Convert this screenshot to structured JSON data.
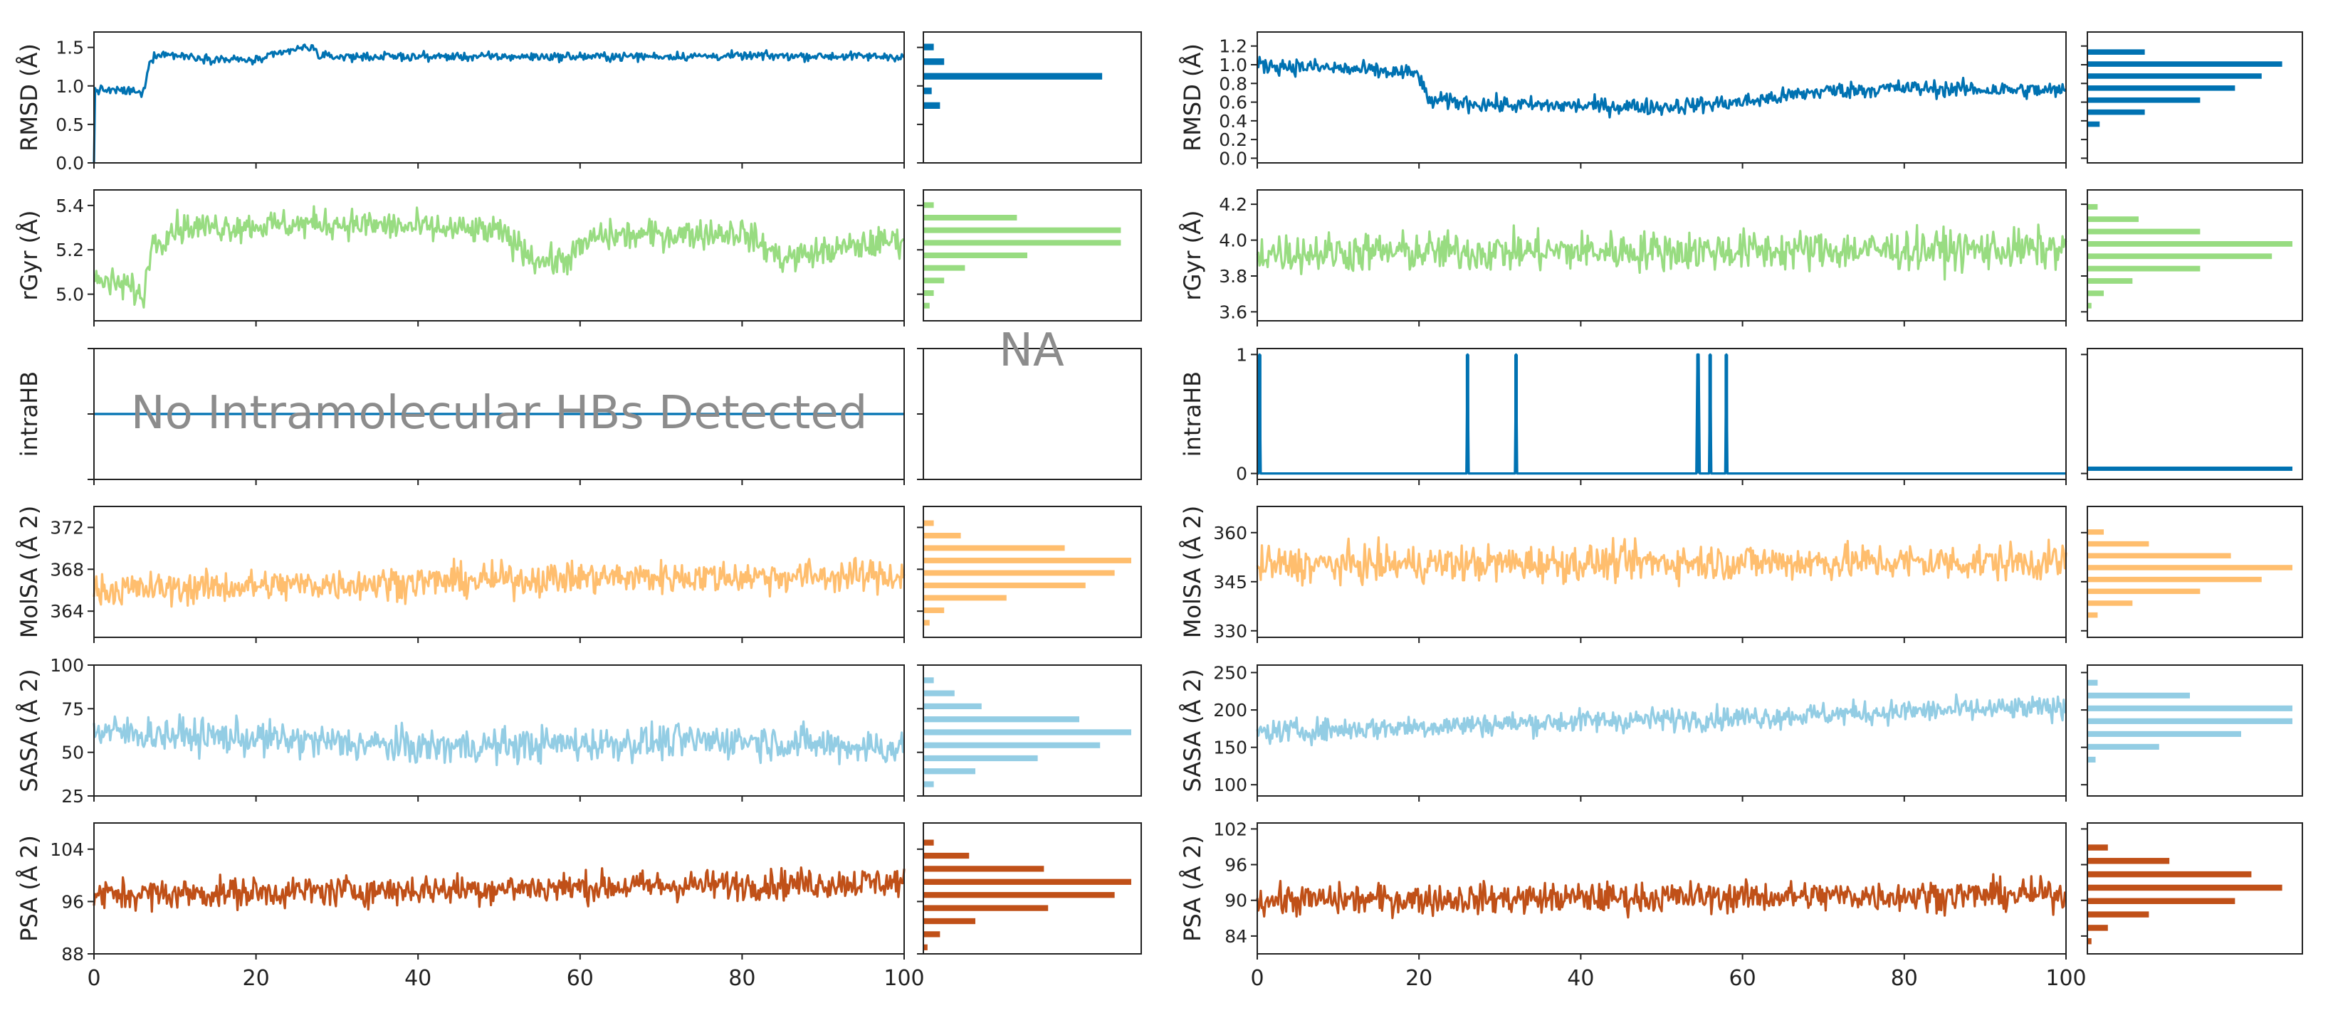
{
  "figure": {
    "title": "",
    "xlabel": "",
    "x_tick_labels": [
      "0",
      "20",
      "40",
      "60",
      "80",
      "100"
    ],
    "y_unit_superscript": "2"
  },
  "chart_data": [
    {
      "type": "line",
      "panel": "left",
      "x_range": [
        0,
        100
      ],
      "rows": [
        {
          "key": "rmsd",
          "ylabel": "RMSD (Å)",
          "color": "#0072b2",
          "ylim": [
            0,
            1.7
          ],
          "ticks": [
            0.0,
            0.5,
            1.0,
            1.5
          ],
          "tick_labels": [
            "0.0",
            "0.5",
            "1.0",
            "1.5"
          ],
          "profile": [
            [
              0,
              0.95
            ],
            [
              5,
              0.93
            ],
            [
              6,
              0.88
            ],
            [
              7,
              1.35
            ],
            [
              8,
              1.42
            ],
            [
              15,
              1.35
            ],
            [
              20,
              1.33
            ],
            [
              25,
              1.48
            ],
            [
              27,
              1.5
            ],
            [
              28,
              1.38
            ],
            [
              60,
              1.38
            ],
            [
              85,
              1.39
            ],
            [
              100,
              1.38
            ]
          ],
          "noise": 0.05,
          "start_value": 0.0,
          "hist": [
            0.08,
            0.04,
            0.86,
            0.1,
            0.05
          ],
          "hist_range": [
            0.65,
            1.6
          ]
        },
        {
          "key": "rgyr",
          "ylabel": "rGyr (Å)",
          "color": "#98dc81",
          "ylim": [
            4.88,
            5.47
          ],
          "ticks": [
            5.0,
            5.2,
            5.4
          ],
          "tick_labels": [
            "5.0",
            "5.2",
            "5.4"
          ],
          "profile": [
            [
              0,
              5.06
            ],
            [
              5,
              5.03
            ],
            [
              6,
              4.96
            ],
            [
              7,
              5.22
            ],
            [
              10,
              5.3
            ],
            [
              30,
              5.32
            ],
            [
              50,
              5.28
            ],
            [
              55,
              5.15
            ],
            [
              58,
              5.15
            ],
            [
              62,
              5.26
            ],
            [
              80,
              5.28
            ],
            [
              85,
              5.16
            ],
            [
              88,
              5.18
            ],
            [
              100,
              5.25
            ]
          ],
          "noise": 0.06,
          "hist": [
            0.03,
            0.05,
            0.1,
            0.2,
            0.5,
            0.95,
            0.95,
            0.45,
            0.05
          ],
          "hist_range": [
            4.92,
            5.43
          ]
        },
        {
          "key": "intrahb",
          "ylabel": "intraHB",
          "color": "#0072b2",
          "ylim": [
            -1,
            1
          ],
          "ticks": [
            -1,
            0,
            1
          ],
          "tick_labels": [],
          "profile": [
            [
              0,
              0
            ],
            [
              100,
              0
            ]
          ],
          "noise": 0,
          "hist": [],
          "annotation": "No Intramolecular HBs Detected",
          "hist_annotation": "NA"
        },
        {
          "key": "molsa",
          "ylabel": "MolSA (Å 2)",
          "color": "#ffbe6e",
          "ylim": [
            361.5,
            374
          ],
          "ticks": [
            364,
            368,
            372
          ],
          "tick_labels": [
            "364",
            "368",
            "372"
          ],
          "profile": [
            [
              0,
              366
            ],
            [
              30,
              366.6
            ],
            [
              60,
              367.2
            ],
            [
              100,
              367.4
            ]
          ],
          "noise": 1.4,
          "hist": [
            0.03,
            0.1,
            0.4,
            0.78,
            0.92,
            1.0,
            0.68,
            0.18,
            0.05
          ],
          "hist_range": [
            362.3,
            373
          ]
        },
        {
          "key": "sasa",
          "ylabel": "SASA (Å 2)",
          "color": "#93cde4",
          "ylim": [
            25,
            100
          ],
          "ticks": [
            25,
            50,
            75,
            100
          ],
          "tick_labels": [
            "25",
            "50",
            "75",
            "100"
          ],
          "profile": [
            [
              0,
              62
            ],
            [
              20,
              58
            ],
            [
              40,
              53
            ],
            [
              60,
              55
            ],
            [
              80,
              57
            ],
            [
              100,
              52
            ]
          ],
          "noise": 9,
          "hist": [
            0.05,
            0.25,
            0.55,
            0.85,
            1.0,
            0.75,
            0.28,
            0.15,
            0.05
          ],
          "hist_range": [
            28,
            95
          ]
        },
        {
          "key": "psa",
          "ylabel": "PSA (Å 2)",
          "color": "#c05018",
          "ylim": [
            88,
            108
          ],
          "ticks": [
            88,
            96,
            104
          ],
          "tick_labels": [
            "88",
            "96",
            "104"
          ],
          "profile": [
            [
              0,
              97
            ],
            [
              50,
              98
            ],
            [
              100,
              99
            ]
          ],
          "noise": 2.1,
          "hist": [
            0.02,
            0.08,
            0.25,
            0.6,
            0.92,
            1.0,
            0.58,
            0.22,
            0.05
          ],
          "hist_range": [
            88,
            106
          ]
        }
      ]
    },
    {
      "type": "line",
      "panel": "right",
      "x_range": [
        0,
        100
      ],
      "rows": [
        {
          "key": "rmsd",
          "ylabel": "RMSD (Å)",
          "color": "#0072b2",
          "ylim": [
            -0.05,
            1.35
          ],
          "ticks": [
            0.0,
            0.2,
            0.4,
            0.6,
            0.8,
            1.0,
            1.2
          ],
          "tick_labels": [
            "0.0",
            "0.2",
            "0.4",
            "0.6",
            "0.8",
            "1.0",
            "1.2"
          ],
          "profile": [
            [
              0,
              1.0
            ],
            [
              10,
              0.96
            ],
            [
              20,
              0.9
            ],
            [
              21,
              0.62
            ],
            [
              30,
              0.57
            ],
            [
              50,
              0.55
            ],
            [
              60,
              0.6
            ],
            [
              70,
              0.72
            ],
            [
              80,
              0.75
            ],
            [
              100,
              0.72
            ]
          ],
          "noise": 0.08,
          "hist": [
            0.06,
            0.28,
            0.55,
            0.72,
            0.85,
            0.95,
            0.28
          ],
          "hist_range": [
            0.3,
            1.2
          ]
        },
        {
          "key": "rgyr",
          "ylabel": "rGyr (Å)",
          "color": "#98dc81",
          "ylim": [
            3.55,
            4.28
          ],
          "ticks": [
            3.6,
            3.8,
            4.0,
            4.2
          ],
          "tick_labels": [
            "3.6",
            "3.8",
            "4.0",
            "4.2"
          ],
          "profile": [
            [
              0,
              3.93
            ],
            [
              50,
              3.94
            ],
            [
              100,
              3.95
            ]
          ],
          "noise": 0.1,
          "hist": [
            0.02,
            0.08,
            0.22,
            0.55,
            0.9,
            1.0,
            0.55,
            0.25,
            0.05
          ],
          "hist_range": [
            3.6,
            4.22
          ]
        },
        {
          "key": "intrahb",
          "ylabel": "intraHB",
          "color": "#0072b2",
          "ylim": [
            -0.05,
            1.05
          ],
          "ticks": [
            0,
            1
          ],
          "tick_labels": [
            "0",
            "1"
          ],
          "profile": [
            [
              0,
              0
            ],
            [
              100,
              0
            ]
          ],
          "noise": 0,
          "spikes": [
            0.3,
            26,
            32,
            54.5,
            56,
            58
          ],
          "hist": [
            1.0
          ],
          "hist_range": [
            0,
            0.08
          ]
        },
        {
          "key": "molsa",
          "ylabel": "MolSA (Å 2)",
          "color": "#ffbe6e",
          "ylim": [
            328,
            368
          ],
          "ticks": [
            330,
            345,
            360
          ],
          "tick_labels": [
            "330",
            "345",
            "360"
          ],
          "profile": [
            [
              0,
              350
            ],
            [
              50,
              351
            ],
            [
              100,
              351
            ]
          ],
          "noise": 5,
          "hist": [
            0.05,
            0.22,
            0.55,
            0.85,
            1.0,
            0.7,
            0.3,
            0.08
          ],
          "hist_range": [
            333,
            362
          ]
        },
        {
          "key": "sasa",
          "ylabel": "SASA (Å 2)",
          "color": "#93cde4",
          "ylim": [
            85,
            260
          ],
          "ticks": [
            100,
            150,
            200,
            250
          ],
          "tick_labels": [
            "100",
            "150",
            "200",
            "250"
          ],
          "profile": [
            [
              0,
              170
            ],
            [
              20,
              178
            ],
            [
              40,
              185
            ],
            [
              60,
              190
            ],
            [
              80,
              198
            ],
            [
              100,
              203
            ]
          ],
          "noise": 14,
          "hist": [
            0.04,
            0.35,
            0.75,
            1.0,
            1.0,
            0.5,
            0.05
          ],
          "hist_range": [
            125,
            245
          ]
        },
        {
          "key": "psa",
          "ylabel": "PSA (Å 2)",
          "color": "#c05018",
          "ylim": [
            81,
            103
          ],
          "ticks": [
            84,
            90,
            96,
            102
          ],
          "tick_labels": [
            "84",
            "90",
            "96",
            "102"
          ],
          "profile": [
            [
              0,
              90
            ],
            [
              50,
              90.5
            ],
            [
              100,
              91
            ]
          ],
          "noise": 2.3,
          "hist": [
            0.02,
            0.1,
            0.3,
            0.72,
            0.95,
            0.8,
            0.4,
            0.1
          ],
          "hist_range": [
            82,
            100
          ]
        }
      ]
    }
  ]
}
